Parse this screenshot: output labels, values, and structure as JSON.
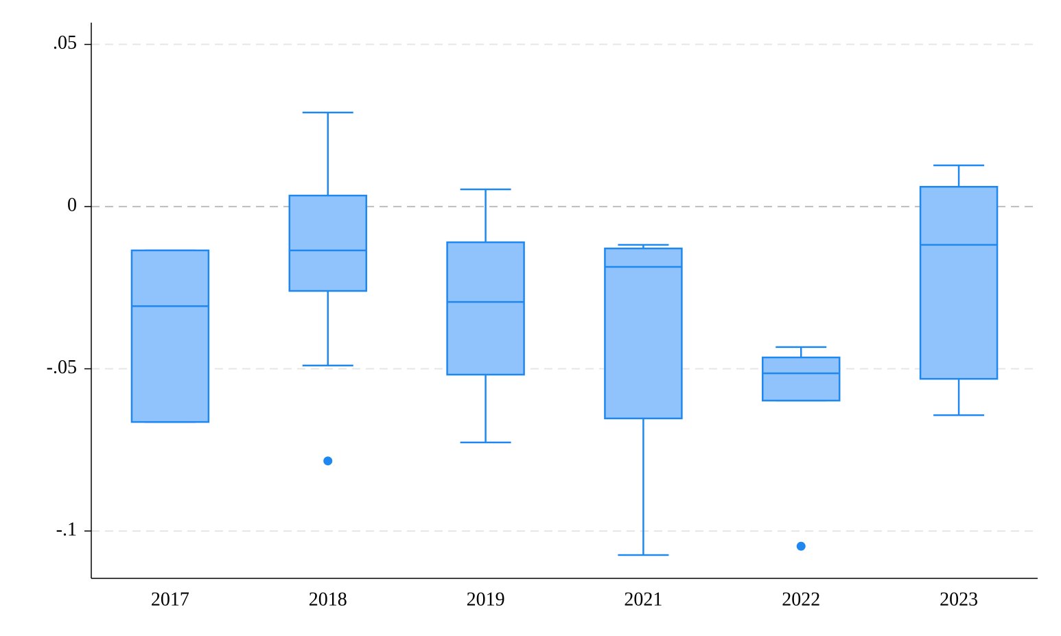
{
  "chart_data": {
    "type": "box",
    "categories": [
      "2017",
      "2018",
      "2019",
      "2021",
      "2022",
      "2023"
    ],
    "series": [
      {
        "color": "#1e88f0",
        "fill": "#90c2fb",
        "min": [
          -0.0664,
          -0.049,
          -0.0727,
          -0.1074,
          -0.0598,
          -0.0643
        ],
        "q1": [
          -0.0664,
          -0.026,
          -0.0518,
          -0.0653,
          -0.0598,
          -0.0531
        ],
        "median": [
          -0.0307,
          -0.0135,
          -0.0294,
          -0.0186,
          -0.0514,
          -0.0118
        ],
        "q3": [
          -0.0135,
          0.0034,
          -0.011,
          -0.0129,
          -0.0465,
          0.0061
        ],
        "max": [
          -0.0135,
          0.029,
          0.0053,
          -0.0118,
          -0.0433,
          0.0127
        ],
        "outliers": [
          [],
          [
            -0.0784
          ],
          [],
          [],
          [
            -0.1047
          ],
          []
        ]
      }
    ],
    "ylim": [
      -0.1146,
      0.0567
    ],
    "yticks": [
      {
        "value": 0.05,
        "label": ".05"
      },
      0,
      {
        "value": -0.05,
        "label": "-.05"
      },
      {
        "value": -0.1,
        "label": "-.1"
      }
    ],
    "grid": true,
    "zero_line": true
  }
}
